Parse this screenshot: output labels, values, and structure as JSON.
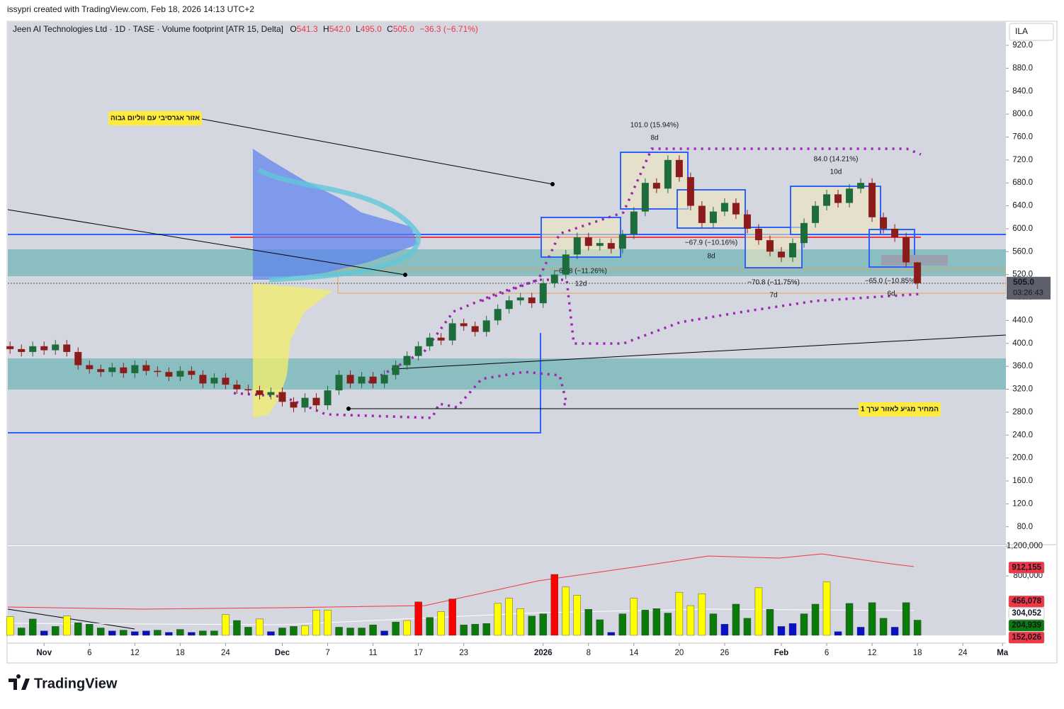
{
  "header": {
    "credit": "issypri created with TradingView.com, Feb 18, 2026 14:13 UTC+2",
    "logo": "TradingView"
  },
  "chart_data": {
    "type": "candlestick",
    "title": "Jeen AI Technologies Ltd · 1D · TASE · Volume footprint [ATR 15, Delta]",
    "legend": {
      "o_label": "O",
      "o": "541.3",
      "h_label": "H",
      "h": "542.0",
      "l_label": "L",
      "l": "495.0",
      "c_label": "C",
      "c": "505.0",
      "change": "−36.3 (−6.71%)"
    },
    "currency": "ILA",
    "last_price": {
      "value": 505,
      "label": "505.0"
    },
    "countdown": "03:26:43",
    "annotations": {
      "zone_aggressive": "אזור אגרסיבי עם ווליום גבוה",
      "value_zone": "המחיר מגיע לאזור ערך 1",
      "m1": "101.0 (15.94%)",
      "m1d": "8d",
      "m2": "84.0 (14.21%)",
      "m2d": "10d",
      "m3": "−67.9 (−10.16%)",
      "m3d": "8d",
      "m4": "−69.8 (−11.26%)",
      "m4d": "12d",
      "m5": "−70.8 (−11.75%)",
      "m5d": "7d",
      "m6": "−65.0 (−10.85%)",
      "m6d": "6d"
    },
    "ylim": [
      50,
      962
    ],
    "yticks": [
      {
        "value": 920,
        "label": "920.0"
      },
      {
        "value": 880,
        "label": "880.0"
      },
      {
        "value": 840,
        "label": "840.0"
      },
      {
        "value": 800,
        "label": "800.0"
      },
      {
        "value": 760,
        "label": "760.0"
      },
      {
        "value": 720,
        "label": "720.0"
      },
      {
        "value": 680,
        "label": "680.0"
      },
      {
        "value": 640,
        "label": "640.0"
      },
      {
        "value": 600,
        "label": "600.0"
      },
      {
        "value": 560,
        "label": "560.0"
      },
      {
        "value": 520,
        "label": "520.0"
      },
      {
        "value": 480,
        "label": "480.0"
      },
      {
        "value": 440,
        "label": "440.0"
      },
      {
        "value": 400,
        "label": "400.0"
      },
      {
        "value": 360,
        "label": "360.0"
      },
      {
        "value": 320,
        "label": "320.0"
      },
      {
        "value": 280,
        "label": "280.0"
      },
      {
        "value": 240,
        "label": "240.0"
      },
      {
        "value": 200,
        "label": "200.0"
      },
      {
        "value": 160,
        "label": "160.0"
      },
      {
        "value": 120,
        "label": "120.0"
      },
      {
        "value": 80,
        "label": "80.0"
      }
    ],
    "xlim": [
      -0.2,
      87.8
    ],
    "xticks": [
      {
        "value": 3,
        "label": "Nov"
      },
      {
        "value": 7,
        "label": "6"
      },
      {
        "value": 11,
        "label": "12"
      },
      {
        "value": 15,
        "label": "18"
      },
      {
        "value": 19,
        "label": "24"
      },
      {
        "value": 24,
        "label": "Dec"
      },
      {
        "value": 28,
        "label": "7"
      },
      {
        "value": 32,
        "label": "11"
      },
      {
        "value": 36,
        "label": "17"
      },
      {
        "value": 40,
        "label": "23"
      },
      {
        "value": 47,
        "label": "2026"
      },
      {
        "value": 51,
        "label": "8"
      },
      {
        "value": 55,
        "label": "14"
      },
      {
        "value": 59,
        "label": "20"
      },
      {
        "value": 63,
        "label": "26"
      },
      {
        "value": 68,
        "label": "Feb"
      },
      {
        "value": 72,
        "label": "6"
      },
      {
        "value": 76,
        "label": "12"
      },
      {
        "value": 80,
        "label": "18"
      },
      {
        "value": 84,
        "label": "24"
      },
      {
        "value": 87.5,
        "label": "Ma"
      }
    ],
    "up_color": "#1e6b3c",
    "down_color": "#8b1c1c",
    "open": [
      395,
      390,
      385,
      395,
      388,
      398,
      385,
      362,
      355,
      350,
      358,
      348,
      362,
      352,
      350,
      342,
      352,
      345,
      330,
      340,
      328,
      320,
      318,
      310,
      315,
      298,
      288,
      305,
      292,
      318,
      345,
      330,
      342,
      330,
      345,
      362,
      378,
      395,
      410,
      405,
      435,
      430,
      420,
      440,
      460,
      475,
      480,
      470,
      505,
      520,
      555,
      585,
      570,
      575,
      565,
      590,
      630,
      680,
      670,
      720,
      690,
      640,
      610,
      630,
      645,
      625,
      600,
      580,
      560,
      550,
      575,
      610,
      640,
      660,
      645,
      670,
      680,
      620,
      600,
      585,
      541.3
    ],
    "high": [
      403,
      398,
      403,
      403,
      406,
      406,
      393,
      370,
      363,
      366,
      366,
      370,
      370,
      360,
      358,
      360,
      360,
      353,
      348,
      348,
      336,
      328,
      326,
      323,
      323,
      306,
      313,
      313,
      326,
      353,
      353,
      350,
      350,
      353,
      370,
      386,
      403,
      418,
      418,
      443,
      443,
      438,
      448,
      468,
      483,
      488,
      488,
      513,
      528,
      563,
      593,
      593,
      583,
      583,
      598,
      638,
      688,
      688,
      728,
      728,
      698,
      648,
      638,
      653,
      653,
      633,
      608,
      588,
      568,
      583,
      618,
      648,
      668,
      668,
      678,
      688,
      688,
      628,
      608,
      593,
      542
    ],
    "low": [
      382,
      377,
      377,
      380,
      380,
      377,
      354,
      347,
      342,
      342,
      340,
      340,
      344,
      342,
      334,
      334,
      337,
      322,
      322,
      320,
      312,
      310,
      302,
      302,
      290,
      280,
      280,
      284,
      284,
      310,
      322,
      322,
      322,
      322,
      337,
      354,
      370,
      387,
      397,
      397,
      422,
      412,
      412,
      432,
      452,
      467,
      462,
      462,
      497,
      512,
      547,
      562,
      562,
      557,
      557,
      582,
      622,
      662,
      662,
      682,
      632,
      602,
      602,
      622,
      617,
      592,
      572,
      552,
      542,
      542,
      567,
      602,
      632,
      637,
      637,
      662,
      612,
      592,
      577,
      533.3,
      495
    ],
    "close": [
      390,
      385,
      395,
      388,
      398,
      385,
      362,
      355,
      350,
      358,
      348,
      362,
      352,
      350,
      342,
      352,
      345,
      330,
      340,
      328,
      320,
      318,
      310,
      315,
      298,
      288,
      305,
      292,
      318,
      345,
      330,
      342,
      330,
      345,
      362,
      378,
      395,
      410,
      405,
      435,
      430,
      420,
      440,
      460,
      475,
      480,
      470,
      505,
      520,
      555,
      585,
      570,
      575,
      565,
      590,
      630,
      680,
      670,
      720,
      690,
      640,
      610,
      630,
      645,
      625,
      600,
      580,
      560,
      550,
      575,
      610,
      640,
      660,
      645,
      670,
      680,
      620,
      600,
      585,
      541.3,
      505
    ],
    "volume": {
      "vlim": [
        0,
        1230000
      ],
      "ticks": [
        {
          "value": 1200000,
          "label": "1,200,000"
        },
        {
          "value": 800000,
          "label": "800,000"
        }
      ],
      "values": [
        250000,
        100000,
        220000,
        60000,
        120000,
        260000,
        170000,
        150000,
        100000,
        60000,
        70000,
        50000,
        60000,
        70000,
        40000,
        80000,
        40000,
        60000,
        60000,
        280000,
        200000,
        110000,
        220000,
        50000,
        100000,
        120000,
        130000,
        340000,
        340000,
        110000,
        100000,
        100000,
        140000,
        60000,
        180000,
        200000,
        450000,
        240000,
        320000,
        490000,
        140000,
        150000,
        160000,
        430000,
        500000,
        360000,
        260000,
        290000,
        820000,
        650000,
        540000,
        350000,
        210000,
        40000,
        290000,
        500000,
        340000,
        360000,
        300000,
        580000,
        400000,
        560000,
        290000,
        150000,
        420000,
        230000,
        640000,
        350000,
        120000,
        160000,
        290000,
        420000,
        720000,
        50000,
        430000,
        110000,
        440000,
        230000,
        110000,
        440000,
        204939
      ],
      "colors": [
        "#ffff00",
        "#0a7a0a",
        "#0a7a0a",
        "#0a10c8",
        "#0a7a0a",
        "#ffff00",
        "#0a7a0a",
        "#0a7a0a",
        "#0a7a0a",
        "#0a10c8",
        "#0a7a0a",
        "#0a10c8",
        "#0a10c8",
        "#0a7a0a",
        "#0a10c8",
        "#0a7a0a",
        "#0a10c8",
        "#0a7a0a",
        "#0a7a0a",
        "#ffff00",
        "#0a7a0a",
        "#0a7a0a",
        "#ffff00",
        "#0a10c8",
        "#0a7a0a",
        "#0a7a0a",
        "#ffff00",
        "#ffff00",
        "#ffff00",
        "#0a7a0a",
        "#0a7a0a",
        "#0a7a0a",
        "#0a7a0a",
        "#0a10c8",
        "#0a7a0a",
        "#ffff00",
        "#ff0000",
        "#0a7a0a",
        "#ffff00",
        "#ff0000",
        "#0a7a0a",
        "#0a7a0a",
        "#0a7a0a",
        "#ffff00",
        "#ffff00",
        "#ffff00",
        "#0a7a0a",
        "#0a7a0a",
        "#ff0000",
        "#ffff00",
        "#ffff00",
        "#0a7a0a",
        "#0a7a0a",
        "#0a10c8",
        "#0a7a0a",
        "#ffff00",
        "#0a7a0a",
        "#0a7a0a",
        "#0a7a0a",
        "#ffff00",
        "#ffff00",
        "#ffff00",
        "#0a7a0a",
        "#0a10c8",
        "#0a7a0a",
        "#0a7a0a",
        "#ffff00",
        "#0a7a0a",
        "#0a10c8",
        "#0a10c8",
        "#0a7a0a",
        "#0a7a0a",
        "#ffff00",
        "#0a10c8",
        "#0a7a0a",
        "#0a10c8",
        "#0a7a0a",
        "#0a7a0a",
        "#0a10c8",
        "#0a7a0a",
        "#0a7a0a"
      ],
      "labels": [
        {
          "value": 912155,
          "label": "912,155",
          "color": "#f23645"
        },
        {
          "value": 456078,
          "label": "456,078",
          "color": "#f23645"
        },
        {
          "value": 304052,
          "label": "304,052",
          "color": "#ffffff"
        },
        {
          "value": 204939,
          "label": "204,939",
          "color": "#0a7a0a"
        },
        {
          "value": 152026,
          "label": "152,026",
          "color": "#f23645"
        }
      ]
    }
  }
}
